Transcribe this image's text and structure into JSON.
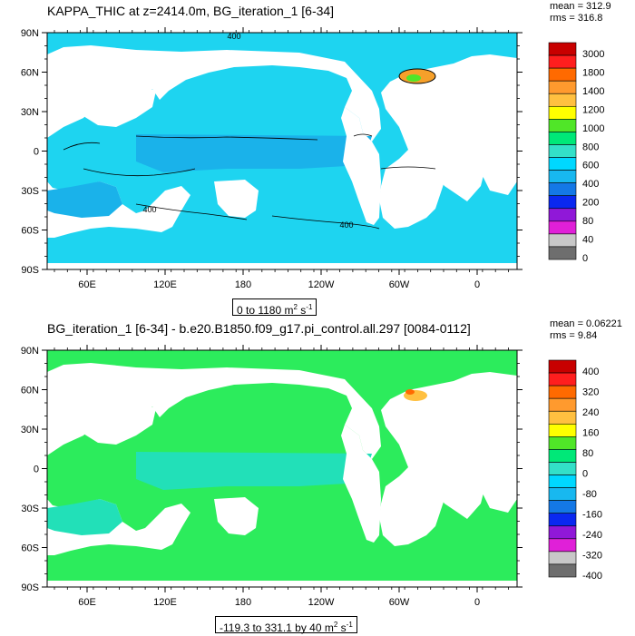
{
  "chart_data": [
    {
      "type": "heatmap",
      "title": "KAPPA_THIC at z=2414.0m, BG_iteration_1 [6-34]",
      "stats": {
        "mean": "mean = 312.9",
        "rms": "rms = 316.8"
      },
      "range_label": "0 to 1180 m",
      "range_unit_sup": "2",
      "range_unit_tail": " s",
      "range_unit_sup2": "-1",
      "x_ticks": [
        "60E",
        "120E",
        "180",
        "120W",
        "60W",
        "0"
      ],
      "y_ticks": [
        "90N",
        "60N",
        "30N",
        "0",
        "30S",
        "60S",
        "90S"
      ],
      "colorbar_levels": [
        "3000",
        "1800",
        "1400",
        "1200",
        "1000",
        "800",
        "600",
        "400",
        "200",
        "80",
        "40",
        "0"
      ],
      "colorbar_colors": [
        "#c80000",
        "#ff1e1e",
        "#ff6a00",
        "#ff9a2e",
        "#ffc040",
        "#ffff00",
        "#50e628",
        "#00e878",
        "#33e0c8",
        "#00d8ff",
        "#18b8f0",
        "#1478e6",
        "#0a28f0",
        "#9018d8",
        "#e020d8",
        "#c8c8c8",
        "#6e6e6e"
      ],
      "contour_labels": [
        "400",
        "400",
        "400"
      ],
      "dominant_value_range": [
        200,
        600
      ]
    },
    {
      "type": "heatmap",
      "title": "BG_iteration_1 [6-34] - b.e20.B1850.f09_g17.pi_control.all.297 [0084-0112]",
      "stats": {
        "mean": "mean = 0.06221",
        "rms": "rms = 9.84"
      },
      "range_label": "-119.3 to 331.1 by 40 m",
      "range_unit_sup": "2",
      "range_unit_tail": " s",
      "range_unit_sup2": "-1",
      "x_ticks": [
        "60E",
        "120E",
        "180",
        "120W",
        "60W",
        "0"
      ],
      "y_ticks": [
        "90N",
        "60N",
        "30N",
        "0",
        "30S",
        "60S",
        "90S"
      ],
      "colorbar_levels": [
        "400",
        "320",
        "240",
        "160",
        "80",
        "0",
        "-80",
        "-160",
        "-240",
        "-320",
        "-400"
      ],
      "colorbar_colors": [
        "#c80000",
        "#ff1e1e",
        "#ff6a00",
        "#ff9a2e",
        "#ffc040",
        "#ffff00",
        "#50e628",
        "#00e878",
        "#33e0c8",
        "#00d8ff",
        "#18b8f0",
        "#1478e6",
        "#0a28f0",
        "#9018d8",
        "#e020d8",
        "#c8c8c8",
        "#6e6e6e"
      ],
      "dominant_value_range": [
        -80,
        80
      ]
    }
  ],
  "colors": {
    "ocean_top": "#1ed4f0",
    "ocean_top_alt": "#1ab2ea",
    "ocean_bottom": "#2cec5c",
    "ocean_bottom_alt": "#22e0b8",
    "land": "#ffffff"
  }
}
